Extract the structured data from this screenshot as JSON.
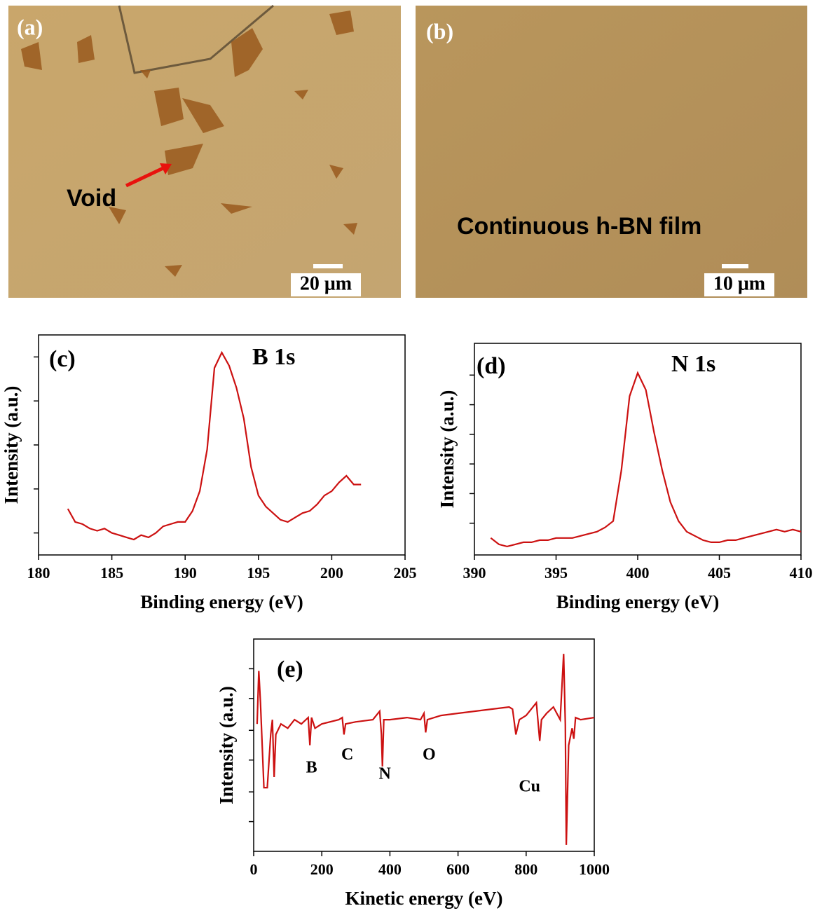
{
  "micrographs": [
    {
      "label": "(a)",
      "annotation": "Void",
      "scale_bar": "20 μm"
    },
    {
      "label": "(b)",
      "annotation": "Continuous h-BN film",
      "scale_bar": "10 μm"
    }
  ],
  "chart_data": [
    {
      "type": "line",
      "panel_label": "(c)",
      "peak_label": "B 1s",
      "x_label": "Binding energy (eV)",
      "y_label": "Intensity (a.u.)",
      "color": "#cc1111",
      "x": [
        182,
        182.5,
        183,
        183.5,
        184,
        184.5,
        185,
        185.5,
        186,
        186.5,
        187,
        187.5,
        188,
        188.5,
        189,
        189.5,
        190,
        190.5,
        191,
        191.5,
        192,
        192.5,
        193,
        193.5,
        194,
        194.5,
        195,
        195.5,
        196,
        196.5,
        197,
        197.5,
        198,
        198.5,
        199,
        199.5,
        200,
        200.5,
        201,
        201.5,
        202
      ],
      "values": [
        21,
        15,
        14,
        12,
        11,
        12,
        10,
        9,
        8,
        7,
        9,
        8,
        10,
        13,
        14,
        15,
        15,
        20,
        29,
        48,
        85,
        92,
        86,
        76,
        62,
        40,
        27,
        22,
        19,
        16,
        15,
        17,
        19,
        20,
        23,
        27,
        29,
        33,
        36,
        32,
        32
      ],
      "xlim": [
        180,
        205
      ],
      "xticks": [
        180,
        185,
        190,
        195,
        200,
        205
      ],
      "ylim": [
        0,
        100
      ],
      "yticks": [
        10,
        30,
        50,
        70,
        90
      ],
      "show_ytick_labels": false
    },
    {
      "type": "line",
      "panel_label": "(d)",
      "peak_label": "N 1s",
      "x_label": "Binding energy (eV)",
      "y_label": "Intensity (a.u.)",
      "color": "#cc1111",
      "x": [
        391,
        391.5,
        392,
        392.5,
        393,
        393.5,
        394,
        394.5,
        395,
        395.5,
        396,
        396.5,
        397,
        397.5,
        398,
        398.5,
        399,
        399.5,
        400,
        400.5,
        401,
        401.5,
        402,
        402.5,
        403,
        403.5,
        404,
        404.5,
        405,
        405.5,
        406,
        406.5,
        407,
        407.5,
        408,
        408.5,
        409,
        409.5,
        410
      ],
      "values": [
        8,
        5,
        4,
        5,
        6,
        6,
        7,
        7,
        8,
        8,
        8,
        9,
        10,
        11,
        13,
        16,
        40,
        75,
        86,
        78,
        58,
        40,
        25,
        16,
        11,
        9,
        7,
        6,
        6,
        7,
        7,
        8,
        9,
        10,
        11,
        12,
        11,
        12,
        11
      ],
      "xlim": [
        390,
        410
      ],
      "xticks": [
        390,
        395,
        400,
        405,
        410
      ],
      "ylim": [
        0,
        100
      ],
      "yticks": [
        15,
        29,
        43,
        57,
        71,
        85
      ],
      "show_ytick_labels": false
    },
    {
      "type": "line",
      "panel_label": "(e)",
      "x_label": "Kinetic energy (eV)",
      "y_label": "Intensity (a.u.)",
      "color": "#cc1111",
      "x": [
        10,
        15,
        20,
        30,
        40,
        50,
        55,
        60,
        65,
        80,
        100,
        120,
        140,
        160,
        165,
        170,
        180,
        200,
        250,
        260,
        265,
        270,
        300,
        350,
        370,
        375,
        378,
        382,
        400,
        450,
        490,
        500,
        505,
        510,
        550,
        600,
        650,
        700,
        750,
        760,
        770,
        780,
        800,
        830,
        840,
        845,
        860,
        880,
        900,
        910,
        915,
        918,
        925,
        935,
        940,
        945,
        960,
        1000
      ],
      "values": [
        60,
        85,
        70,
        30,
        30,
        55,
        62,
        35,
        55,
        60,
        58,
        62,
        60,
        63,
        50,
        63,
        58,
        60,
        62,
        63,
        55,
        60,
        61,
        62,
        66,
        55,
        40,
        62,
        62,
        63,
        62,
        65,
        56,
        62,
        64,
        65,
        66,
        67,
        68,
        67,
        55,
        62,
        64,
        70,
        52,
        62,
        65,
        68,
        62,
        93,
        60,
        3,
        50,
        58,
        53,
        63,
        62,
        63
      ],
      "xlim": [
        0,
        1000
      ],
      "xticks": [
        0,
        200,
        400,
        600,
        800,
        1000
      ],
      "ylim": [
        0,
        100
      ],
      "yticks": [
        14,
        28,
        43,
        57,
        72,
        86
      ],
      "show_ytick_labels": false,
      "annotations": [
        {
          "text": "B",
          "x": 170,
          "y": 39
        },
        {
          "text": "C",
          "x": 275,
          "y": 45
        },
        {
          "text": "N",
          "x": 385,
          "y": 36
        },
        {
          "text": "O",
          "x": 515,
          "y": 45
        },
        {
          "text": "Cu",
          "x": 810,
          "y": 30
        }
      ]
    }
  ]
}
